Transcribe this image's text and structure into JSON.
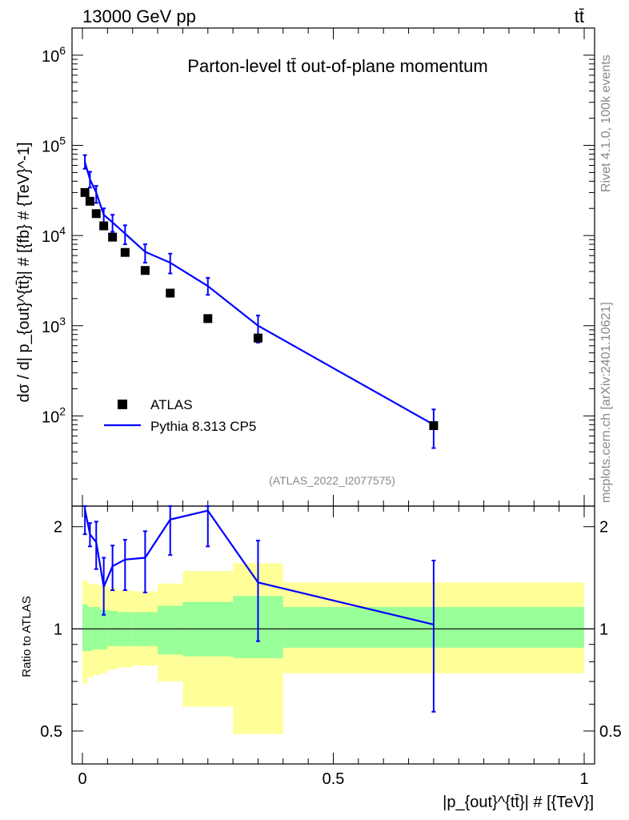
{
  "header": {
    "left": "13000 GeV pp",
    "right": "tt̄"
  },
  "side_labels": {
    "rivet": "Rivet 4.1.0,  100k events",
    "mcplots": "mcplots.cern.ch [arXiv:2401.10621]"
  },
  "chart_data": {
    "type": "scatter",
    "title": "Parton-level tt̄ out-of-plane momentum",
    "analysis_id": "(ATLAS_2022_I2077575)",
    "xlabel": "|p_{out}^{tt̄}| # [{TeV}]",
    "ylabel": "dσ / d| p_{out}^{tt̄}| # [{fb} # {TeV}^-1]",
    "ratio_ylabel": "Ratio to ATLAS",
    "xlim": [
      0,
      1
    ],
    "ylim": [
      10,
      2000000
    ],
    "ratio_ylim": [
      0.4,
      2.3
    ],
    "x_ticks": [
      "0",
      "0.5",
      "1"
    ],
    "x_tick_values": [
      0,
      0.5,
      1
    ],
    "y_ticks": [
      {
        "base": "10",
        "exp": "2",
        "value": 100
      },
      {
        "base": "10",
        "exp": "3",
        "value": 1000
      },
      {
        "base": "10",
        "exp": "4",
        "value": 10000
      },
      {
        "base": "10",
        "exp": "5",
        "value": 100000
      },
      {
        "base": "10",
        "exp": "6",
        "value": 1000000
      }
    ],
    "ratio_ticks": [
      "0.5",
      "1",
      "2"
    ],
    "ratio_tick_values": [
      0.5,
      1,
      2
    ],
    "legend": {
      "position": "bottom-left",
      "entries": [
        "ATLAS",
        "Pythia 8.313 CP5"
      ]
    },
    "bin_edges": [
      0,
      0.01,
      0.02,
      0.035,
      0.05,
      0.07,
      0.1,
      0.15,
      0.2,
      0.3,
      0.4,
      1.0
    ],
    "series": [
      {
        "name": "ATLAS",
        "marker": "square",
        "x": [
          0.005,
          0.015,
          0.0275,
          0.0425,
          0.06,
          0.085,
          0.125,
          0.175,
          0.25,
          0.35,
          0.7
        ],
        "values": [
          30000,
          24000,
          17500,
          12800,
          9600,
          6500,
          4100,
          2300,
          1200,
          730,
          78
        ]
      },
      {
        "name": "Pythia 8.313 CP5",
        "marker": "line",
        "x": [
          0.005,
          0.015,
          0.0275,
          0.0425,
          0.06,
          0.085,
          0.125,
          0.175,
          0.25,
          0.35,
          0.7
        ],
        "values": [
          65000,
          42000,
          30000,
          17000,
          14000,
          10500,
          6600,
          5000,
          2750,
          1000,
          80
        ],
        "err_low": [
          55000,
          34000,
          23000,
          13000,
          11000,
          8000,
          5000,
          3800,
          2200,
          650,
          44
        ],
        "err_high": [
          78000,
          51000,
          35500,
          20000,
          17000,
          13000,
          8000,
          6300,
          3400,
          1300,
          118
        ]
      }
    ],
    "ratio": {
      "values": [
        2.25,
        1.9,
        1.8,
        1.33,
        1.53,
        1.6,
        1.62,
        2.1,
        2.23,
        1.37,
        1.03
      ],
      "err_low": [
        1.9,
        1.75,
        1.5,
        1.1,
        1.3,
        1.3,
        1.28,
        1.65,
        1.75,
        0.92,
        0.57
      ],
      "err_high": [
        2.4,
        2.05,
        2.07,
        1.62,
        1.76,
        1.83,
        1.94,
        2.55,
        2.5,
        1.82,
        1.59
      ],
      "band_1sigma_low": [
        0.86,
        0.86,
        0.87,
        0.87,
        0.89,
        0.89,
        0.89,
        0.84,
        0.83,
        0.82,
        0.88
      ],
      "band_1sigma_high": [
        1.18,
        1.16,
        1.16,
        1.14,
        1.13,
        1.12,
        1.12,
        1.17,
        1.2,
        1.25,
        1.16
      ],
      "band_2sigma_low": [
        0.69,
        0.72,
        0.73,
        0.74,
        0.76,
        0.77,
        0.78,
        0.7,
        0.59,
        0.49,
        0.74
      ],
      "band_2sigma_high": [
        1.39,
        1.36,
        1.35,
        1.34,
        1.32,
        1.3,
        1.29,
        1.36,
        1.48,
        1.56,
        1.37
      ]
    }
  },
  "colors": {
    "data": "#000000",
    "mc": "#0000ff",
    "band1": "#99ff99",
    "band2": "#ffff99",
    "grey_text": "#888888"
  }
}
